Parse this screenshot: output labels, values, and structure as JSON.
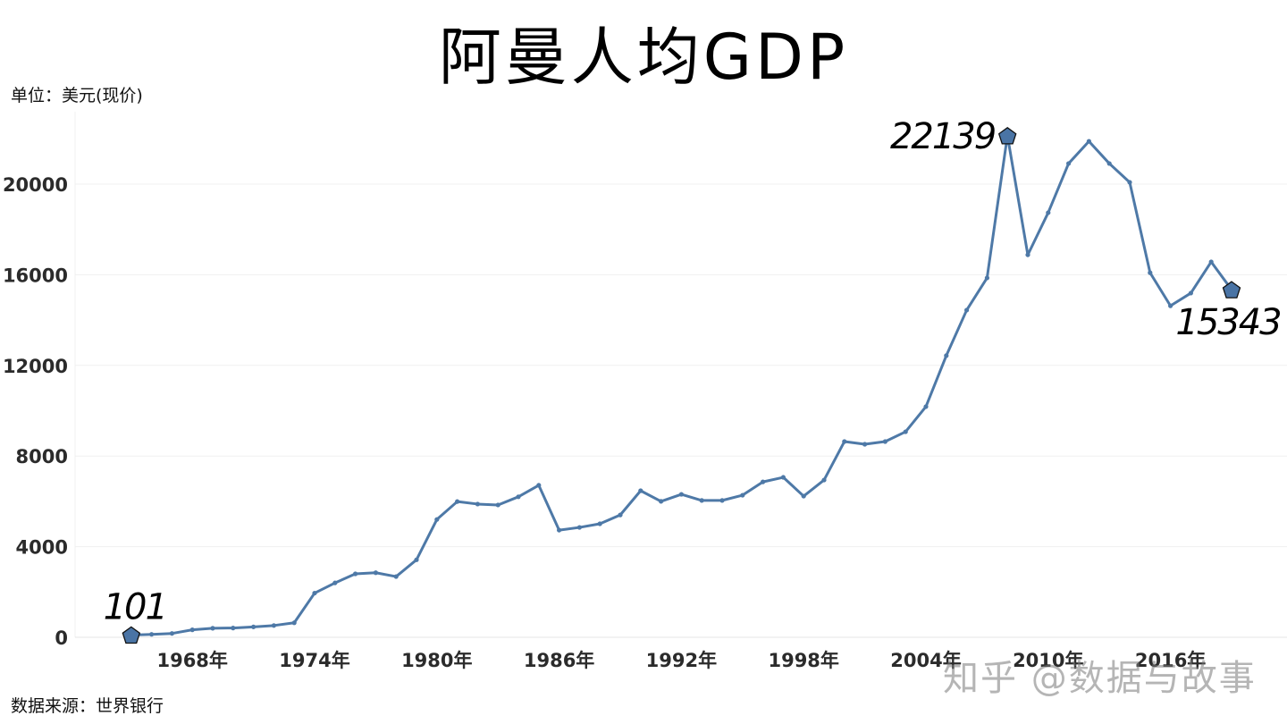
{
  "title": "阿曼人均GDP",
  "unit_label": "单位：美元(现价)",
  "source_label": "数据来源：世界银行",
  "watermark": "知乎 @数据与故事",
  "colors": {
    "line": "#4e79a7",
    "marker": "#4a74a5",
    "grid": "#f0f0f0",
    "text": "#2b2b2b"
  },
  "annotations": [
    {
      "year": 1965,
      "value": 101,
      "label": "101"
    },
    {
      "year": 2008,
      "value": 22139,
      "label": "22139"
    },
    {
      "year": 2019,
      "value": 15343,
      "label": "15343"
    }
  ],
  "chart_data": {
    "type": "line",
    "title": "阿曼人均GDP",
    "xlabel": "",
    "ylabel": "单位：美元(现价)",
    "ylim": [
      0,
      22500
    ],
    "yticks": [
      0,
      4000,
      8000,
      12000,
      16000,
      20000
    ],
    "xtick_labels": [
      "1968年",
      "1974年",
      "1980年",
      "1986年",
      "1992年",
      "1998年",
      "2004年",
      "2010年",
      "2016年"
    ],
    "xtick_years": [
      1968,
      1974,
      1980,
      1986,
      1992,
      1998,
      2004,
      2010,
      2016
    ],
    "grid": true,
    "x": [
      1965,
      1966,
      1967,
      1968,
      1969,
      1970,
      1971,
      1972,
      1973,
      1974,
      1975,
      1976,
      1977,
      1978,
      1979,
      1980,
      1981,
      1982,
      1983,
      1984,
      1985,
      1986,
      1987,
      1988,
      1989,
      1990,
      1991,
      1992,
      1993,
      1994,
      1995,
      1996,
      1997,
      1998,
      1999,
      2000,
      2001,
      2002,
      2003,
      2004,
      2005,
      2006,
      2007,
      2008,
      2009,
      2010,
      2011,
      2012,
      2013,
      2014,
      2015,
      2016,
      2017,
      2018,
      2019
    ],
    "series": [
      {
        "name": "阿曼人均GDP",
        "values": [
          101,
          130,
          170,
          330,
          400,
          410,
          460,
          520,
          640,
          1950,
          2400,
          2800,
          2850,
          2680,
          3420,
          5200,
          5990,
          5880,
          5840,
          6200,
          6710,
          4730,
          4850,
          5010,
          5400,
          6470,
          6000,
          6310,
          6040,
          6040,
          6270,
          6860,
          7060,
          6230,
          6940,
          8640,
          8520,
          8640,
          9070,
          10180,
          12430,
          14440,
          15860,
          22139,
          16880,
          18740,
          20910,
          21890,
          20910,
          20080,
          16090,
          14630,
          15190,
          16570,
          15343
        ]
      }
    ]
  }
}
